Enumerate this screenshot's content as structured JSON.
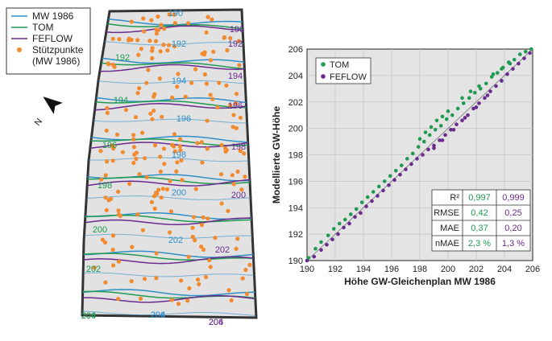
{
  "map": {
    "legend": [
      {
        "label": "MW 1986",
        "color": "#2f8fc8",
        "kind": "line"
      },
      {
        "label": "TOM",
        "color": "#1f9a52",
        "kind": "line"
      },
      {
        "label": "FEFLOW",
        "color": "#6a2b8e",
        "kind": "line"
      },
      {
        "label": "Stützpunkte",
        "color": "#f28a30",
        "kind": "dot"
      },
      {
        "label": "(MW 1986)",
        "color": "",
        "kind": "none"
      }
    ],
    "north_label": "N",
    "contour_labels": [
      {
        "text": "190",
        "series": "MW 1986"
      },
      {
        "text": "190",
        "series": "FEFLOW"
      },
      {
        "text": "192",
        "series": "TOM"
      },
      {
        "text": "192",
        "series": "MW 1986"
      },
      {
        "text": "192",
        "series": "FEFLOW"
      },
      {
        "text": "194",
        "series": "TOM"
      },
      {
        "text": "194",
        "series": "MW 1986"
      },
      {
        "text": "194",
        "series": "FEFLOW"
      },
      {
        "text": "196",
        "series": "TOM"
      },
      {
        "text": "196",
        "series": "MW 1986"
      },
      {
        "text": "196",
        "series": "FEFLOW"
      },
      {
        "text": "198",
        "series": "TOM"
      },
      {
        "text": "198",
        "series": "MW 1986"
      },
      {
        "text": "198",
        "series": "FEFLOW"
      },
      {
        "text": "200",
        "series": "TOM"
      },
      {
        "text": "200",
        "series": "MW 1986"
      },
      {
        "text": "200",
        "series": "FEFLOW"
      },
      {
        "text": "202",
        "series": "TOM"
      },
      {
        "text": "202",
        "series": "MW 1986"
      },
      {
        "text": "202",
        "series": "FEFLOW"
      },
      {
        "text": "204",
        "series": "TOM"
      },
      {
        "text": "204",
        "series": "MW 1986"
      },
      {
        "text": "204",
        "series": "FEFLOW"
      },
      {
        "text": "206",
        "series": "TOM"
      },
      {
        "text": "206",
        "series": "MW 1986"
      },
      {
        "text": "206",
        "series": "FEFLOW"
      }
    ]
  },
  "chart_data": {
    "type": "scatter",
    "xlabel": "Höhe GW-Gleichenplan MW 1986",
    "ylabel": "Modellierte GW-Höhe",
    "xlim": [
      190,
      206
    ],
    "ylim": [
      190,
      206
    ],
    "xticks": [
      190,
      192,
      194,
      196,
      198,
      200,
      202,
      204,
      206
    ],
    "yticks": [
      190,
      192,
      194,
      196,
      198,
      200,
      202,
      204,
      206
    ],
    "grid": true,
    "legend_position": "top-left",
    "series": [
      {
        "name": "TOM",
        "color": "#1f9a52",
        "x": [
          190.1,
          190.6,
          191.0,
          191.5,
          191.9,
          192.3,
          192.7,
          193.1,
          193.5,
          193.9,
          194.3,
          194.7,
          195.1,
          195.5,
          195.9,
          196.3,
          196.7,
          197.1,
          197.5,
          197.9,
          198.3,
          198.7,
          199.1,
          199.5,
          199.9,
          200.3,
          200.7,
          201.1,
          201.5,
          201.9,
          202.3,
          202.7,
          203.1,
          203.5,
          203.9,
          204.3,
          204.7,
          205.1,
          205.5,
          205.9,
          198.0,
          198.4,
          198.8,
          199.2,
          199.6,
          200.0,
          201.0,
          201.6,
          202.2,
          203.2,
          203.8,
          204.4
        ],
        "y": [
          190.2,
          190.9,
          191.4,
          191.9,
          192.4,
          192.8,
          193.1,
          193.5,
          193.9,
          194.4,
          194.8,
          195.2,
          195.6,
          196.0,
          196.4,
          196.8,
          197.2,
          197.7,
          198.1,
          198.6,
          199.0,
          199.5,
          199.9,
          200.2,
          200.7,
          201.0,
          201.5,
          201.9,
          202.3,
          202.7,
          203.0,
          203.4,
          203.9,
          204.2,
          204.6,
          205.0,
          205.2,
          205.6,
          205.8,
          206.0,
          199.2,
          199.7,
          200.1,
          200.6,
          200.9,
          201.3,
          202.3,
          202.8,
          203.2,
          204.1,
          204.5,
          204.9
        ]
      },
      {
        "name": "FEFLOW",
        "color": "#6a2b8e",
        "x": [
          190.0,
          190.5,
          191.0,
          191.4,
          191.8,
          192.2,
          192.6,
          193.0,
          193.4,
          193.8,
          194.2,
          194.6,
          195.0,
          195.4,
          195.8,
          196.2,
          196.6,
          197.0,
          197.4,
          197.8,
          198.2,
          198.6,
          199.0,
          199.4,
          199.8,
          200.2,
          200.6,
          201.0,
          201.4,
          201.8,
          202.2,
          202.6,
          203.0,
          203.4,
          203.8,
          204.2,
          204.6,
          205.0,
          205.4,
          205.8,
          199.0,
          199.6,
          200.4,
          201.2,
          202.0,
          202.8
        ],
        "y": [
          190.0,
          190.3,
          190.8,
          191.2,
          191.6,
          192.0,
          192.5,
          192.8,
          193.3,
          193.6,
          194.1,
          194.5,
          194.9,
          195.3,
          195.7,
          196.1,
          196.5,
          196.9,
          197.3,
          197.7,
          198.0,
          198.4,
          198.7,
          199.1,
          199.5,
          199.9,
          200.3,
          200.6,
          201.0,
          201.5,
          201.9,
          202.3,
          202.8,
          203.2,
          203.6,
          204.1,
          204.5,
          204.9,
          205.3,
          205.7,
          198.5,
          199.1,
          199.9,
          200.8,
          201.6,
          202.5
        ]
      }
    ],
    "stats_table": {
      "rows": [
        {
          "label": "R²",
          "tom": "0,997",
          "feflow": "0,999"
        },
        {
          "label": "RMSE",
          "tom": "0,42",
          "feflow": "0,25"
        },
        {
          "label": "MAE",
          "tom": "0,37",
          "feflow": "0,20"
        },
        {
          "label": "nMAE",
          "tom": "2,3 %",
          "feflow": "1,3 %"
        }
      ]
    }
  }
}
